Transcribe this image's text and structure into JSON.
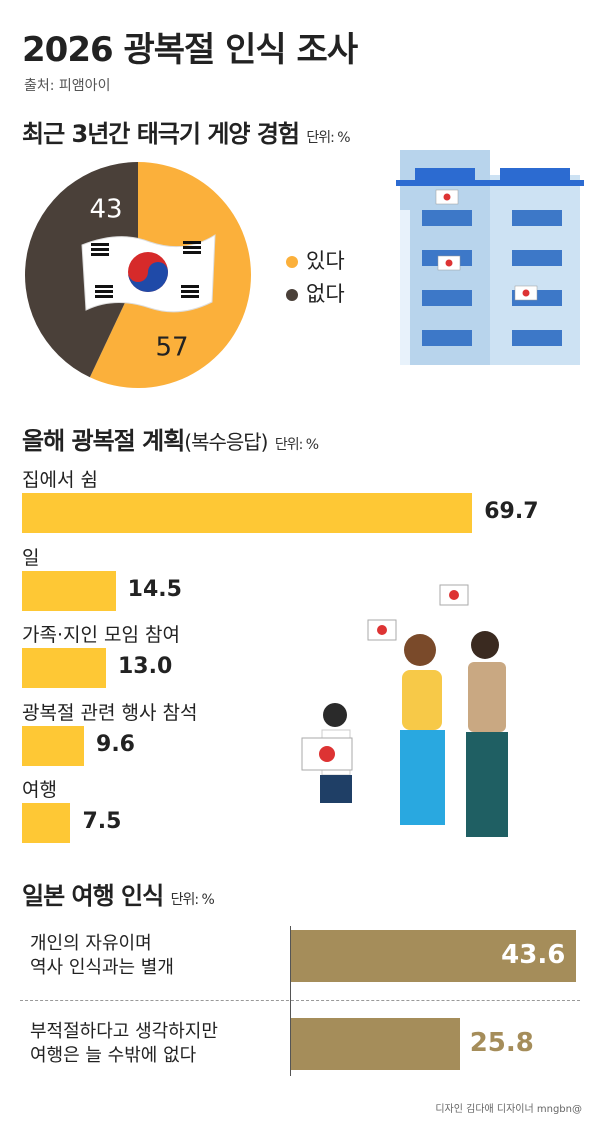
{
  "title": "2026 광복절 인식 조사",
  "source": "출처: 피앰아이",
  "credit": "디자인 김다애 디자이너 mngbn@",
  "chart_data": [
    {
      "type": "pie",
      "title": "최근 3년간 태극기 게양 경험",
      "unit": "단위: %",
      "categories": [
        "있다",
        "없다"
      ],
      "values": [
        57,
        43
      ],
      "colors": [
        "#fbb03b",
        "#4a4039"
      ]
    },
    {
      "type": "bar",
      "title": "올해 광복절 계획",
      "subtitle": "(복수응답)",
      "unit": "단위: %",
      "categories": [
        "집에서 쉼",
        "일",
        "가족·지인 모임 참여",
        "광복절 관련 행사  참석",
        "여행"
      ],
      "values": [
        69.7,
        14.5,
        13.0,
        9.6,
        7.5
      ],
      "value_labels": [
        "69.7",
        "14.5",
        "13.0",
        "9.6",
        "7.5"
      ],
      "color": "#fec835"
    },
    {
      "type": "bar",
      "title": "일본 여행 인식",
      "unit": "단위: %",
      "categories": [
        "개인의 자유이며\n역사 인식과는 별개",
        "부적절하다고 생각하지만\n여행은 늘 수밖에 없다"
      ],
      "values": [
        43.6,
        25.8
      ],
      "color": "#a58d5a"
    }
  ]
}
